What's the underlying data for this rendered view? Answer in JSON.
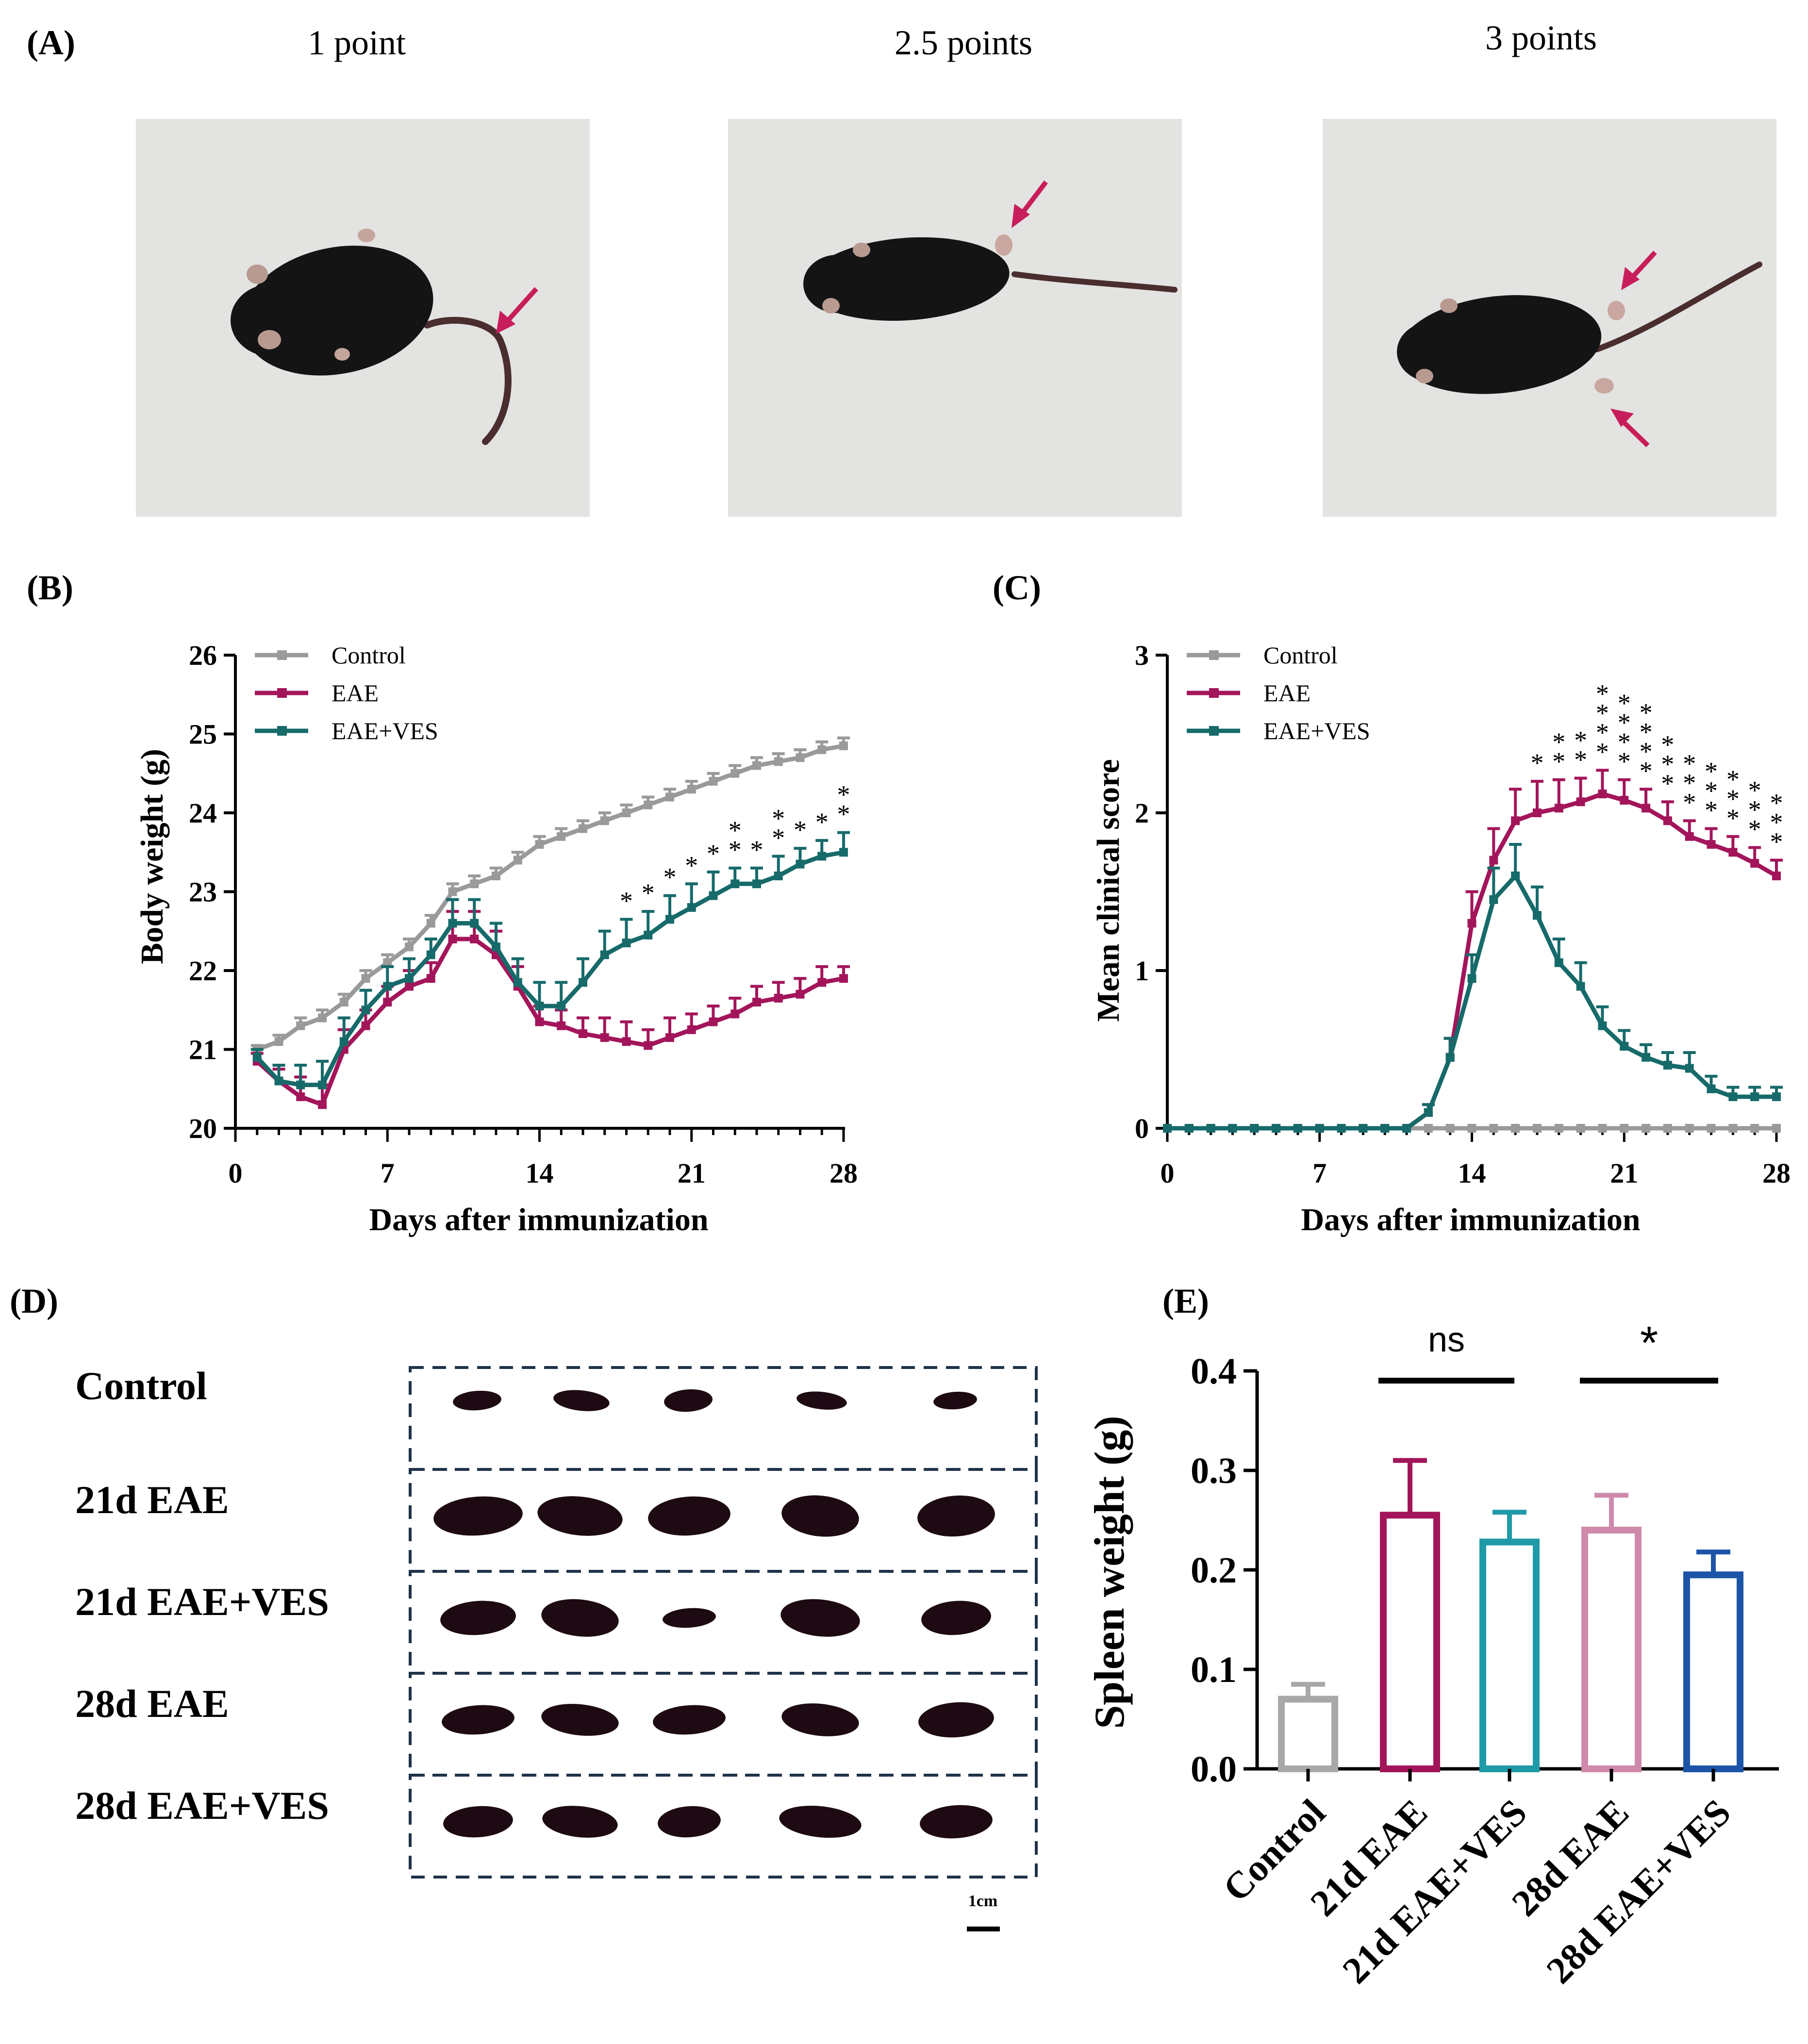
{
  "colors": {
    "control": "#9a9a9a",
    "eae": "#a3155a",
    "eae_ves": "#176a6a",
    "bar_control": "#a8a8a8",
    "bar_21d_eae": "#a3155a",
    "bar_21d_eae_ves": "#1f9aa8",
    "bar_28d_eae": "#cf8aab",
    "bar_28d_eae_ves": "#1c55a8",
    "arrow": "#c81d5b",
    "box_dash": "#1f3349",
    "photo_bg": "#e3e3e1",
    "mouse": "#141414",
    "spleen": "#1d0a12"
  },
  "panel_a": {
    "label": "(A)",
    "photos": [
      {
        "caption": "1 point",
        "image": "mouse-photo"
      },
      {
        "caption": "2.5 points",
        "image": "mouse-photo"
      },
      {
        "caption": "3 points",
        "image": "mouse-photo"
      }
    ]
  },
  "panel_d": {
    "label": "(D)",
    "rows": [
      "Control",
      "21d EAE",
      "21d EAE+VES",
      "28d EAE",
      "28d EAE+VES"
    ],
    "scale_label": "1cm",
    "image": "spleen-photo"
  },
  "chart_data": [
    {
      "id": "B",
      "panel_label": "(B)",
      "type": "line",
      "xlabel": "Days after immunization",
      "ylabel": "Body weight (g)",
      "xlim": [
        0,
        28
      ],
      "ylim": [
        20,
        26
      ],
      "xticks": [
        0,
        7,
        14,
        21,
        28
      ],
      "yticks": [
        20,
        21,
        22,
        23,
        24,
        25,
        26
      ],
      "legend_position": "top-left",
      "x": [
        1,
        2,
        3,
        4,
        5,
        6,
        7,
        8,
        9,
        10,
        11,
        12,
        13,
        14,
        15,
        16,
        17,
        18,
        19,
        20,
        21,
        22,
        23,
        24,
        25,
        26,
        27,
        28
      ],
      "series": [
        {
          "name": "Control",
          "color_key": "control",
          "values": [
            21.0,
            21.1,
            21.3,
            21.4,
            21.6,
            21.9,
            22.1,
            22.3,
            22.6,
            23.0,
            23.1,
            23.2,
            23.4,
            23.6,
            23.7,
            23.8,
            23.9,
            24.0,
            24.1,
            24.2,
            24.3,
            24.4,
            24.5,
            24.6,
            24.65,
            24.7,
            24.8,
            24.85
          ],
          "errors": [
            0.05,
            0.08,
            0.1,
            0.1,
            0.1,
            0.1,
            0.1,
            0.1,
            0.1,
            0.1,
            0.1,
            0.1,
            0.1,
            0.1,
            0.1,
            0.1,
            0.1,
            0.1,
            0.1,
            0.1,
            0.1,
            0.1,
            0.1,
            0.1,
            0.1,
            0.1,
            0.1,
            0.1
          ]
        },
        {
          "name": "EAE",
          "color_key": "eae",
          "values": [
            20.85,
            20.6,
            20.4,
            20.3,
            21.0,
            21.3,
            21.6,
            21.8,
            21.9,
            22.4,
            22.4,
            22.2,
            21.8,
            21.35,
            21.3,
            21.2,
            21.15,
            21.1,
            21.05,
            21.15,
            21.25,
            21.35,
            21.45,
            21.6,
            21.65,
            21.7,
            21.85,
            21.9
          ],
          "errors": [
            0.1,
            0.15,
            0.25,
            0.25,
            0.25,
            0.2,
            0.2,
            0.2,
            0.2,
            0.35,
            0.35,
            0.3,
            0.25,
            0.2,
            0.2,
            0.2,
            0.25,
            0.25,
            0.2,
            0.25,
            0.2,
            0.2,
            0.2,
            0.2,
            0.2,
            0.2,
            0.2,
            0.15
          ]
        },
        {
          "name": "EAE+VES",
          "color_key": "eae_ves",
          "values": [
            20.9,
            20.6,
            20.55,
            20.55,
            21.1,
            21.5,
            21.8,
            21.9,
            22.2,
            22.6,
            22.6,
            22.3,
            21.85,
            21.55,
            21.55,
            21.85,
            22.2,
            22.35,
            22.45,
            22.65,
            22.8,
            22.95,
            23.1,
            23.1,
            23.2,
            23.35,
            23.45,
            23.5
          ],
          "errors": [
            0.1,
            0.2,
            0.25,
            0.3,
            0.3,
            0.25,
            0.25,
            0.25,
            0.2,
            0.3,
            0.3,
            0.3,
            0.3,
            0.3,
            0.3,
            0.3,
            0.3,
            0.3,
            0.3,
            0.3,
            0.3,
            0.3,
            0.2,
            0.2,
            0.25,
            0.2,
            0.2,
            0.25
          ]
        }
      ],
      "significance": [
        {
          "x": 18,
          "label": "*"
        },
        {
          "x": 19,
          "label": "*"
        },
        {
          "x": 20,
          "label": "*"
        },
        {
          "x": 21,
          "label": "*"
        },
        {
          "x": 22,
          "label": "*"
        },
        {
          "x": 23,
          "label": "**"
        },
        {
          "x": 24,
          "label": "*"
        },
        {
          "x": 25,
          "label": "**"
        },
        {
          "x": 26,
          "label": "*"
        },
        {
          "x": 27,
          "label": "*"
        },
        {
          "x": 28,
          "label": "**"
        }
      ]
    },
    {
      "id": "C",
      "panel_label": "(C)",
      "type": "line",
      "xlabel": "Days after immunization",
      "ylabel": "Mean clinical score",
      "xlim": [
        0,
        28
      ],
      "ylim": [
        0,
        3
      ],
      "xticks": [
        0,
        7,
        14,
        21,
        28
      ],
      "yticks": [
        0,
        1,
        2,
        3
      ],
      "legend_position": "top-left",
      "x": [
        0,
        1,
        2,
        3,
        4,
        5,
        6,
        7,
        8,
        9,
        10,
        11,
        12,
        13,
        14,
        15,
        16,
        17,
        18,
        19,
        20,
        21,
        22,
        23,
        24,
        25,
        26,
        27,
        28
      ],
      "series": [
        {
          "name": "Control",
          "color_key": "control",
          "values": [
            0,
            0,
            0,
            0,
            0,
            0,
            0,
            0,
            0,
            0,
            0,
            0,
            0,
            0,
            0,
            0,
            0,
            0,
            0,
            0,
            0,
            0,
            0,
            0,
            0,
            0,
            0,
            0,
            0
          ],
          "errors": [
            0,
            0,
            0,
            0,
            0,
            0,
            0,
            0,
            0,
            0,
            0,
            0,
            0,
            0,
            0,
            0,
            0,
            0,
            0,
            0,
            0,
            0,
            0,
            0,
            0,
            0,
            0,
            0,
            0
          ]
        },
        {
          "name": "EAE",
          "color_key": "eae",
          "values": [
            0,
            0,
            0,
            0,
            0,
            0,
            0,
            0,
            0,
            0,
            0,
            0,
            0.1,
            0.45,
            1.3,
            1.7,
            1.95,
            2.0,
            2.03,
            2.07,
            2.12,
            2.08,
            2.03,
            1.95,
            1.85,
            1.8,
            1.75,
            1.68,
            1.6
          ],
          "errors": [
            0,
            0,
            0,
            0,
            0,
            0,
            0,
            0,
            0,
            0,
            0,
            0,
            0.05,
            0.12,
            0.2,
            0.2,
            0.2,
            0.2,
            0.18,
            0.15,
            0.15,
            0.13,
            0.12,
            0.12,
            0.1,
            0.1,
            0.1,
            0.1,
            0.1
          ]
        },
        {
          "name": "EAE+VES",
          "color_key": "eae_ves",
          "values": [
            0,
            0,
            0,
            0,
            0,
            0,
            0,
            0,
            0,
            0,
            0,
            0,
            0.1,
            0.45,
            0.95,
            1.45,
            1.6,
            1.35,
            1.05,
            0.9,
            0.65,
            0.52,
            0.45,
            0.4,
            0.38,
            0.25,
            0.2,
            0.2,
            0.2
          ],
          "errors": [
            0,
            0,
            0,
            0,
            0,
            0,
            0,
            0,
            0,
            0,
            0,
            0,
            0.05,
            0.12,
            0.15,
            0.2,
            0.2,
            0.18,
            0.15,
            0.15,
            0.12,
            0.1,
            0.08,
            0.08,
            0.1,
            0.08,
            0.06,
            0.06,
            0.06
          ]
        }
      ],
      "significance": [
        {
          "x": 17,
          "label": "*"
        },
        {
          "x": 18,
          "label": "**"
        },
        {
          "x": 19,
          "label": "**"
        },
        {
          "x": 20,
          "label": "****"
        },
        {
          "x": 21,
          "label": "****"
        },
        {
          "x": 22,
          "label": "****"
        },
        {
          "x": 23,
          "label": "***"
        },
        {
          "x": 24,
          "label": "***"
        },
        {
          "x": 25,
          "label": "***"
        },
        {
          "x": 26,
          "label": "***"
        },
        {
          "x": 27,
          "label": "***"
        },
        {
          "x": 28,
          "label": "***"
        }
      ]
    },
    {
      "id": "E",
      "panel_label": "(E)",
      "type": "bar",
      "ylabel": "Spleen weight (g)",
      "ylim": [
        0,
        0.4
      ],
      "yticks": [
        0.0,
        0.1,
        0.2,
        0.3,
        0.4
      ],
      "ytick_labels": [
        "0.0",
        "0.1",
        "0.2",
        "0.3",
        "0.4"
      ],
      "categories": [
        "Control",
        "21d EAE",
        "21d EAE+VES",
        "28d EAE",
        "28d EAE+VES"
      ],
      "values": [
        0.07,
        0.255,
        0.228,
        0.24,
        0.195
      ],
      "errors": [
        0.015,
        0.055,
        0.03,
        0.035,
        0.023
      ],
      "color_keys": [
        "bar_control",
        "bar_21d_eae",
        "bar_21d_eae_ves",
        "bar_28d_eae",
        "bar_28d_eae_ves"
      ],
      "comparisons": [
        {
          "from": 1,
          "to": 2,
          "label": "ns"
        },
        {
          "from": 3,
          "to": 4,
          "label": "*"
        }
      ]
    }
  ]
}
